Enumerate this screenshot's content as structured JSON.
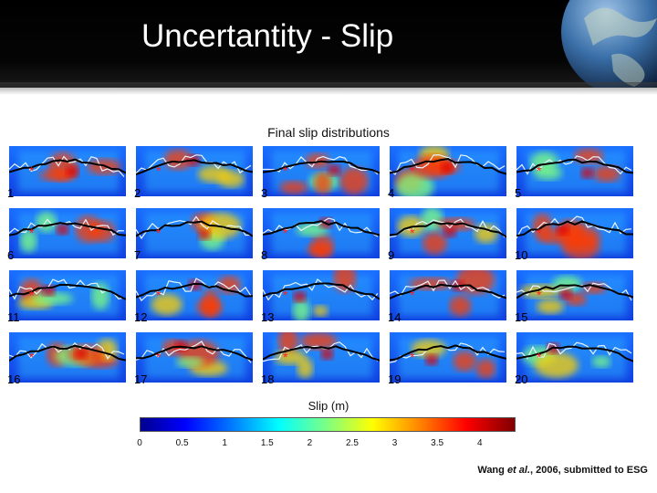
{
  "slide": {
    "title": "Uncertantity - Slip",
    "citation": {
      "authors": "Wang",
      "etal": "et al.",
      "rest": ", 2006, submitted to ESG"
    }
  },
  "figure": {
    "title": "Final slip distributions",
    "panel_labels": [
      "1",
      "2",
      "3",
      "4",
      "5",
      "6",
      "7",
      "8",
      "9",
      "10",
      "11",
      "12",
      "13",
      "14",
      "15",
      "16",
      "17",
      "18",
      "19",
      "20"
    ],
    "colorbar": {
      "title": "Slip (m)",
      "ticks": [
        "0",
        "0.5",
        "1",
        "1.5",
        "2",
        "2.5",
        "3",
        "3.5",
        "4"
      ],
      "range": [
        0,
        4.4
      ],
      "colors": [
        "#00008f",
        "#0000ff",
        "#0080ff",
        "#00ffff",
        "#80ff80",
        "#ffff00",
        "#ff8000",
        "#ff0000",
        "#800000"
      ]
    }
  },
  "icons": {
    "globe": "globe-icon",
    "hypocenter": "asterisk-marker"
  }
}
